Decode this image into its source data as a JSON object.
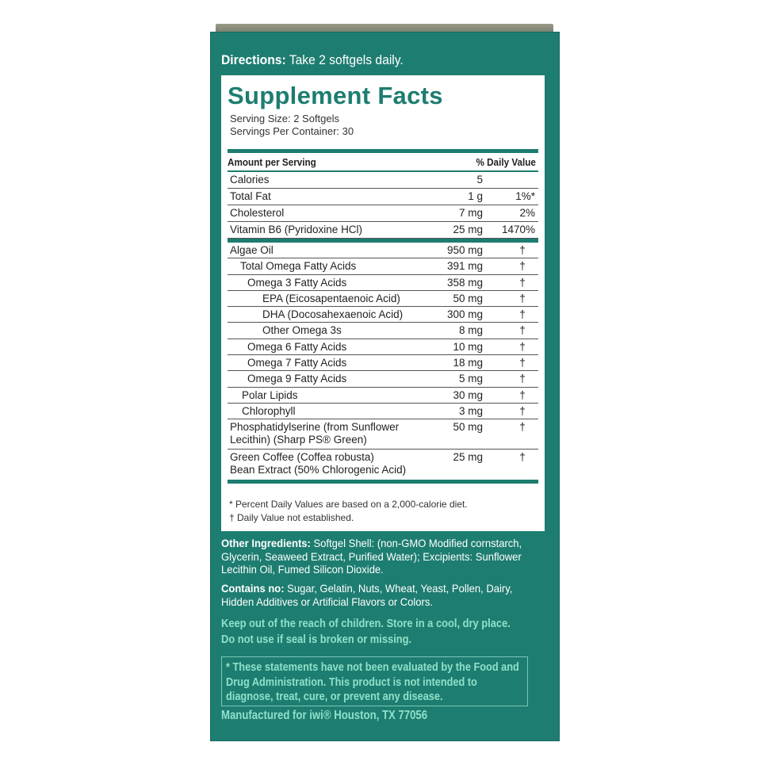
{
  "directions": {
    "label": "Directions:",
    "text": " Take 2 softgels daily."
  },
  "facts": {
    "title": "Supplement Facts",
    "serving_size": "Serving Size: 2 Softgels",
    "servings_per_container": "Servings Per Container: 30",
    "header_amount": "Amount per Serving",
    "header_dv": "% Daily Value",
    "section1": [
      {
        "name": "Calories",
        "amount": "5",
        "dv": ""
      },
      {
        "name": "Total Fat",
        "amount": "1 g",
        "dv": "1%*"
      },
      {
        "name": "Cholesterol",
        "amount": "7 mg",
        "dv": "2%"
      },
      {
        "name": "Vitamin B6 (Pyridoxine HCl)",
        "amount": "25 mg",
        "dv": "1470%"
      }
    ],
    "section2": [
      {
        "name": "Algae Oil",
        "amount": "950 mg",
        "dv": "†",
        "level": 0
      },
      {
        "name": "Total Omega Fatty Acids",
        "amount": "391 mg",
        "dv": "†",
        "level": 1
      },
      {
        "name": "Omega 3 Fatty Acids",
        "amount": "358 mg",
        "dv": "†",
        "level": 2
      },
      {
        "name": "EPA (Eicosapentaenoic Acid)",
        "amount": "50 mg",
        "dv": "†",
        "level": 3
      },
      {
        "name": "DHA (Docosahexaenoic Acid)",
        "amount": "300 mg",
        "dv": "†",
        "level": 3
      },
      {
        "name": "Other Omega 3s",
        "amount": "8 mg",
        "dv": "†",
        "level": 3
      },
      {
        "name": "Omega 6 Fatty Acids",
        "amount": "10 mg",
        "dv": "†",
        "level": 2
      },
      {
        "name": "Omega 7 Fatty Acids",
        "amount": "18 mg",
        "dv": "†",
        "level": 2
      },
      {
        "name": "Omega 9 Fatty Acids",
        "amount": "5 mg",
        "dv": "†",
        "level": 2
      },
      {
        "name": "Polar Lipids",
        "amount": "30 mg",
        "dv": "†",
        "level": "p"
      },
      {
        "name": "Chlorophyll",
        "amount": "3 mg",
        "dv": "†",
        "level": "p"
      }
    ],
    "section3": [
      {
        "name1": "Phosphatidylserine (from Sunflower",
        "name2": "Lecithin) (Sharp PS® Green)",
        "amount": "50 mg",
        "dv": "†"
      },
      {
        "name1": "Green Coffee (Coffea robusta)",
        "name2": "Bean Extract (50% Chlorogenic Acid)",
        "amount": "25 mg",
        "dv": "†"
      }
    ],
    "footnote1": "*  Percent Daily Values are based on a 2,000-calorie diet.",
    "footnote2": "† Daily Value not established."
  },
  "other": {
    "label": "Other Ingredients:",
    "text": " Softgel Shell: (non-GMO Modified cornstarch, Glycerin, Seaweed Extract, Purified Water); Excipients:  Sunflower Lecithin Oil, Fumed Silicon Dioxide."
  },
  "contains": {
    "label": "Contains no:",
    "text": " Sugar, Gelatin, Nuts, Wheat, Yeast, Pollen, Dairy, Hidden Additives or Artificial Flavors or Colors."
  },
  "warning1": "Keep out of the reach of children. Store in a cool, dry place.",
  "warning2": "Do not use if seal is broken or missing.",
  "fda": "* These statements have not been evaluated by the Food and Drug Administration. This product is not intended to diagnose, treat, cure, or prevent any disease.",
  "manufacturer": "Manufactured for iwi®  Houston, TX 77056",
  "colors": {
    "box": "#1d7d70",
    "mint_text": "#8fe0c9",
    "panel": "#ffffff"
  }
}
